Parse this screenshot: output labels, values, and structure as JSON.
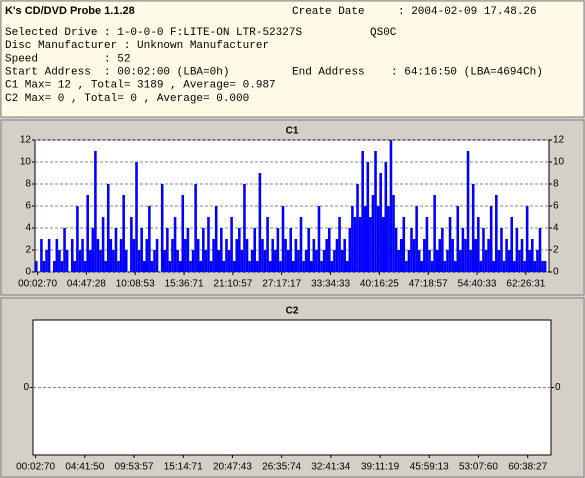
{
  "header": {
    "title": "K's CD/DVD Probe 1.1.28",
    "create_date_label": "Create Date",
    "create_date": ": 2004-02-09 17.48.26",
    "rows": [
      [
        "Selected Drive : 1-0-0-0 F:LITE-ON LTR-52327S",
        "QS0C"
      ],
      [
        "Disc Manufacturer : Unknown Manufacturer"
      ],
      [
        "Speed          : 52"
      ],
      [
        "Start Address  : 00:02:00 (LBA=0h)",
        "End Address    : 64:16:50 (LBA=4694Ch)"
      ],
      [
        "C1 Max= 12 , Total= 3189 , Average= 0.987"
      ],
      [
        "C2 Max= 0 , Total= 0 , Average= 0.000"
      ]
    ]
  },
  "chart_data": [
    {
      "type": "bar",
      "title": "C1",
      "color": "#0000ff",
      "grid": true,
      "xlim": [
        0,
        200
      ],
      "ylim": [
        0,
        12
      ],
      "yticks": [
        0,
        2,
        4,
        6,
        8,
        10,
        12
      ],
      "xticks": [
        {
          "value": 1,
          "label": "00:02:70"
        },
        {
          "value": 20,
          "label": "04:47:28"
        },
        {
          "value": 39,
          "label": "10:08:53"
        },
        {
          "value": 58,
          "label": "15:36:71"
        },
        {
          "value": 77,
          "label": "21:10:57"
        },
        {
          "value": 96,
          "label": "27:17:17"
        },
        {
          "value": 115,
          "label": "33:34:33"
        },
        {
          "value": 134,
          "label": "40:16:25"
        },
        {
          "value": 153,
          "label": "47:18:57"
        },
        {
          "value": 172,
          "label": "54:40:33"
        },
        {
          "value": 191,
          "label": "62:26:31"
        }
      ],
      "values": [
        1,
        0,
        3,
        1,
        2,
        3,
        0,
        1,
        3,
        2,
        1,
        4,
        2,
        0,
        3,
        1,
        6,
        2,
        3,
        1,
        7,
        2,
        4,
        11,
        3,
        2,
        5,
        1,
        8,
        3,
        2,
        4,
        1,
        3,
        7,
        2,
        0,
        5,
        3,
        10,
        2,
        4,
        1,
        3,
        6,
        1,
        2,
        3,
        0,
        8,
        2,
        4,
        1,
        3,
        5,
        2,
        1,
        7,
        3,
        4,
        1,
        2,
        8,
        3,
        1,
        4,
        2,
        5,
        1,
        3,
        6,
        2,
        4,
        1,
        3,
        2,
        5,
        1,
        3,
        4,
        2,
        8,
        3,
        1,
        2,
        4,
        1,
        9,
        3,
        2,
        5,
        1,
        3,
        2,
        4,
        1,
        6,
        3,
        2,
        4,
        1,
        3,
        2,
        5,
        1,
        2,
        4,
        1,
        3,
        2,
        6,
        1,
        2,
        3,
        4,
        1,
        2,
        3,
        5,
        2,
        3,
        1,
        4,
        6,
        5,
        8,
        5,
        11,
        6,
        10,
        5,
        7,
        11,
        6,
        9,
        5,
        10,
        6,
        12,
        7,
        4,
        2,
        3,
        5,
        1,
        2,
        4,
        3,
        6,
        2,
        1,
        3,
        5,
        2,
        1,
        7,
        2,
        3,
        4,
        1,
        2,
        5,
        3,
        1,
        6,
        2,
        4,
        3,
        11,
        2,
        8,
        3,
        5,
        1,
        4,
        2,
        3,
        6,
        1,
        7,
        2,
        4,
        1,
        3,
        2,
        5,
        1,
        4,
        2,
        3,
        1,
        6,
        2,
        3,
        1,
        2,
        4,
        1,
        1,
        0
      ]
    },
    {
      "type": "bar",
      "title": "C2",
      "color": "#0000ff",
      "grid": true,
      "xlim": [
        0,
        200
      ],
      "ylim": [
        -1,
        1
      ],
      "yticks": [
        0
      ],
      "xticks": [
        {
          "value": 1,
          "label": "00:02:70"
        },
        {
          "value": 20,
          "label": "04:41:50"
        },
        {
          "value": 39,
          "label": "09:53:57"
        },
        {
          "value": 58,
          "label": "15:14:71"
        },
        {
          "value": 77,
          "label": "20:47:43"
        },
        {
          "value": 96,
          "label": "26:35:74"
        },
        {
          "value": 115,
          "label": "32:41:34"
        },
        {
          "value": 134,
          "label": "39:11:19"
        },
        {
          "value": 153,
          "label": "45:59:13"
        },
        {
          "value": 172,
          "label": "53:07:60"
        },
        {
          "value": 191,
          "label": "60:38:27"
        }
      ],
      "values": []
    }
  ]
}
